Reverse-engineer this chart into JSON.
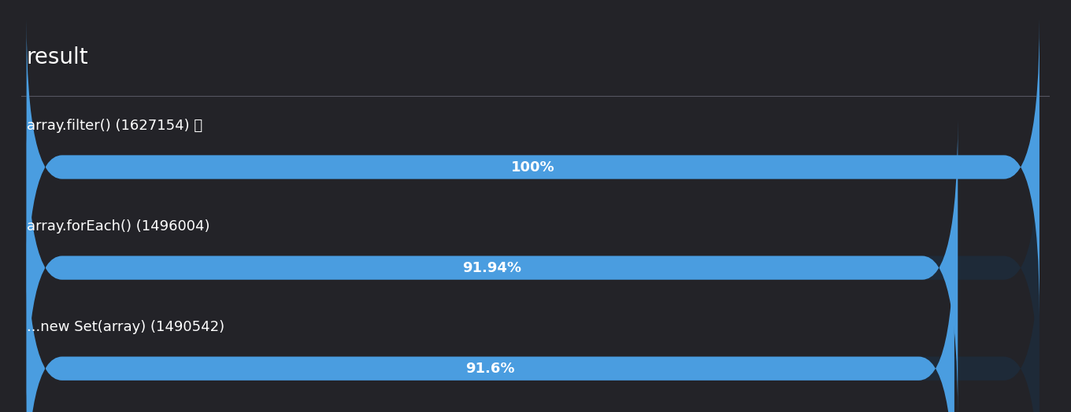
{
  "title": "result",
  "background_color": "#232328",
  "title_color": "#ffffff",
  "bar_color": "#4a9de0",
  "bar_bg_color": "#1e2a38",
  "text_color": "#ffffff",
  "separator_color": "#555560",
  "bars": [
    {
      "label": "array.filter() (1627154) 🏆",
      "value": 100.0,
      "display": "100%"
    },
    {
      "label": "array.forEach() (1496004)",
      "value": 91.94,
      "display": "91.94%"
    },
    {
      "label": "...new Set(array) (1490542)",
      "value": 91.6,
      "display": "91.6%"
    }
  ],
  "max_value": 100,
  "label_fontsize": 13,
  "value_fontsize": 13,
  "title_fontsize": 20
}
